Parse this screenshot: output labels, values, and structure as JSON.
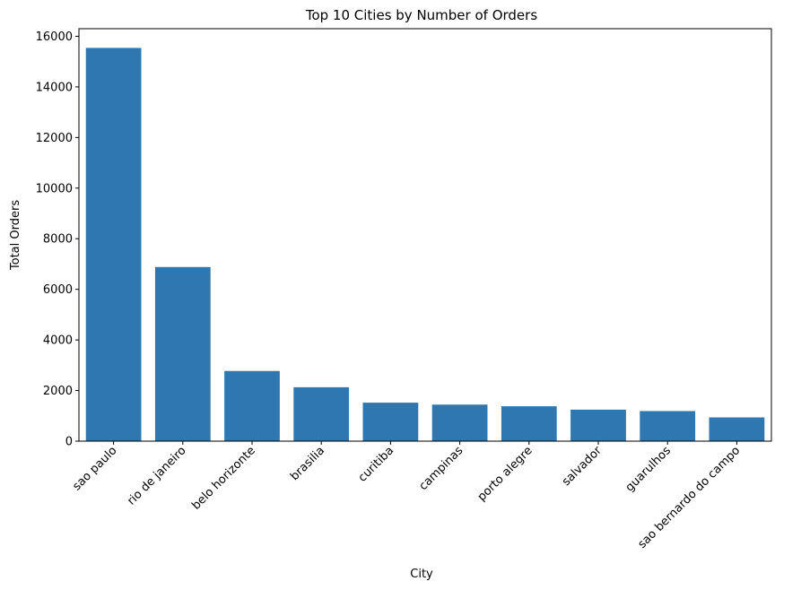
{
  "chart_data": {
    "type": "bar",
    "title": "Top 10 Cities by Number of Orders",
    "xlabel": "City",
    "ylabel": "Total Orders",
    "categories": [
      "sao paulo",
      "rio de janeiro",
      "belo horizonte",
      "brasilia",
      "curitiba",
      "campinas",
      "porto alegre",
      "salvador",
      "guarulhos",
      "sao bernardo do campo"
    ],
    "values": [
      15540,
      6882,
      2773,
      2131,
      1521,
      1444,
      1379,
      1245,
      1189,
      938
    ],
    "ylim": [
      0,
      16300
    ],
    "yticks": [
      0,
      2000,
      4000,
      6000,
      8000,
      10000,
      12000,
      14000,
      16000
    ],
    "bar_color": "#2e77b0",
    "grid": false,
    "legend": "none"
  }
}
